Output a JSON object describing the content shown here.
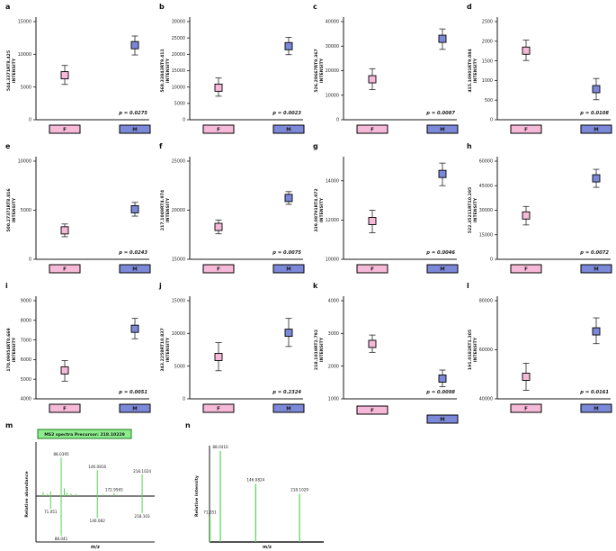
{
  "figure": {
    "background": "#ffffff",
    "group_labels": {
      "f": "F",
      "m": "M"
    }
  },
  "colors": {
    "f_fill": "#f6b9d8",
    "m_fill": "#7c89d9",
    "marker_stroke": "#000000",
    "error_bar": "#3d3d3d",
    "axis": "#1a1a1a",
    "peak_green": "#52d452",
    "header_fill": "#8ded8d",
    "header_stroke": "#1f7a1f"
  },
  "chart_data": [
    {
      "panel": "a",
      "type": "dotplot",
      "ylabel_line1": "544.3371RT8.425",
      "ylabel_line2": "INTENSITY",
      "ylim": [
        0,
        15000
      ],
      "yticks": [
        0,
        5000,
        10000,
        15000
      ],
      "points": [
        {
          "group": "F",
          "value": 6800,
          "lo": 5400,
          "hi": 8300
        },
        {
          "group": "M",
          "value": 11400,
          "lo": 9900,
          "hi": 12800
        }
      ],
      "p_text": "p = 0.0275"
    },
    {
      "panel": "b",
      "type": "dotplot",
      "ylabel_line1": "568.33843RT9.411",
      "ylabel_line2": "INTENSITY",
      "ylim": [
        0,
        30000
      ],
      "yticks": [
        0,
        5000,
        10000,
        15000,
        20000,
        25000,
        30000
      ],
      "points": [
        {
          "group": "F",
          "value": 9800,
          "lo": 7200,
          "hi": 12800
        },
        {
          "group": "M",
          "value": 22500,
          "lo": 19900,
          "hi": 25200
        }
      ],
      "p_text": "p = 0.0023"
    },
    {
      "panel": "c",
      "type": "dotplot",
      "ylabel_line1": "526.28667RT9.367",
      "ylabel_line2": "INTENSITY",
      "ylim": [
        0,
        40000
      ],
      "yticks": [
        0,
        10000,
        20000,
        30000,
        40000
      ],
      "points": [
        {
          "group": "F",
          "value": 16500,
          "lo": 12300,
          "hi": 20800
        },
        {
          "group": "M",
          "value": 33000,
          "lo": 28700,
          "hi": 37000
        }
      ],
      "p_text": "p = 0.0087"
    },
    {
      "panel": "d",
      "type": "dotplot",
      "ylabel_line1": "415.10901RT9.084",
      "ylabel_line2": "INTENSITY",
      "ylim": [
        0,
        2500
      ],
      "yticks": [
        0,
        500,
        1000,
        1500,
        2000,
        2500
      ],
      "points": [
        {
          "group": "F",
          "value": 1760,
          "lo": 1510,
          "hi": 2030
        },
        {
          "group": "M",
          "value": 780,
          "lo": 510,
          "hi": 1050
        }
      ],
      "p_text": "p = 0.0108"
    },
    {
      "panel": "e",
      "type": "dotplot",
      "ylabel_line1": "500.27371RT8.816",
      "ylabel_line2": "INTENSITY",
      "ylim": [
        0,
        10000
      ],
      "yticks": [
        0,
        5000,
        10000
      ],
      "points": [
        {
          "group": "F",
          "value": 2950,
          "lo": 2300,
          "hi": 3600
        },
        {
          "group": "M",
          "value": 5100,
          "lo": 4400,
          "hi": 5800
        }
      ],
      "p_text": "p = 0.0243"
    },
    {
      "panel": "f",
      "type": "dotplot",
      "ylabel_line1": "217.1049RT4.974",
      "ylabel_line2": "INTENSITY",
      "ylim": [
        15000,
        25000
      ],
      "yticks": [
        15000,
        20000,
        25000
      ],
      "points": [
        {
          "group": "F",
          "value": 18300,
          "lo": 17600,
          "hi": 19000
        },
        {
          "group": "M",
          "value": 21250,
          "lo": 20600,
          "hi": 21900
        }
      ],
      "p_text": "p = 0.0075"
    },
    {
      "panel": "g",
      "type": "dotplot",
      "ylabel_line1": "339.08791RT4.972",
      "ylabel_line2": "INTENSITY",
      "ylim": [
        10000,
        15000
      ],
      "yticks": [
        10000,
        12000,
        14000
      ],
      "points": [
        {
          "group": "F",
          "value": 11950,
          "lo": 11350,
          "hi": 12500
        },
        {
          "group": "M",
          "value": 14350,
          "lo": 13750,
          "hi": 14900
        }
      ],
      "p_text": "p = 0.0046"
    },
    {
      "panel": "h",
      "type": "dotplot",
      "ylabel_line1": "522.35211RT10.295",
      "ylabel_line2": "INTENSITY",
      "ylim": [
        0,
        60000
      ],
      "yticks": [
        0,
        15000,
        30000,
        45000,
        60000
      ],
      "points": [
        {
          "group": "F",
          "value": 26800,
          "lo": 21000,
          "hi": 32300
        },
        {
          "group": "M",
          "value": 49500,
          "lo": 44000,
          "hi": 55000
        }
      ],
      "p_text": "p = 0.0072"
    },
    {
      "panel": "i",
      "type": "dotplot",
      "ylabel_line1": "170.09054RT0.669",
      "ylabel_line2": "INTENSITY",
      "ylim": [
        4000,
        9000
      ],
      "yticks": [
        4000,
        5000,
        6000,
        7000,
        8000,
        9000
      ],
      "points": [
        {
          "group": "F",
          "value": 5450,
          "lo": 4900,
          "hi": 5950
        },
        {
          "group": "M",
          "value": 7570,
          "lo": 7060,
          "hi": 8100
        }
      ],
      "p_text": "p = 0.0051"
    },
    {
      "panel": "j",
      "type": "dotplot",
      "ylabel_line1": "343.2258RT10.837",
      "ylabel_line2": "INTENSITY",
      "ylim": [
        0,
        15000
      ],
      "yticks": [
        0,
        5000,
        10000,
        15000
      ],
      "points": [
        {
          "group": "F",
          "value": 6400,
          "lo": 4300,
          "hi": 8600
        },
        {
          "group": "M",
          "value": 10100,
          "lo": 8000,
          "hi": 12300
        }
      ],
      "p_text": "p = 0.2324"
    },
    {
      "panel": "k",
      "type": "dotplot",
      "ylabel_line1": "218.1019RT2.792",
      "ylabel_line2": "INTENSITY",
      "ylim": [
        1000,
        4000
      ],
      "yticks": [
        1000,
        2000,
        3000,
        4000
      ],
      "points": [
        {
          "group": "F",
          "value": 2680,
          "lo": 2420,
          "hi": 2950
        },
        {
          "group": "M",
          "value": 1620,
          "lo": 1370,
          "hi": 1880
        }
      ],
      "p_text": "p = 0.0098"
    },
    {
      "panel": "l",
      "type": "dotplot",
      "ylabel_line1": "191.0182RT1.305",
      "ylabel_line2": "INTENSITY",
      "ylim": [
        40000,
        80000
      ],
      "yticks": [
        40000,
        60000,
        80000
      ],
      "points": [
        {
          "group": "F",
          "value": 49000,
          "lo": 43500,
          "hi": 54500
        },
        {
          "group": "M",
          "value": 67500,
          "lo": 62500,
          "hi": 73000
        }
      ],
      "p_text": "p = 0.0161"
    },
    {
      "panel": "m",
      "type": "mirror_spectrum",
      "header": "MS2 spectra Precursor: 218.10229",
      "xlabel": "m/z",
      "ylabel": "Relative abundance",
      "peaks_top": [
        {
          "mz": 59,
          "rel": 0.1
        },
        {
          "mz": 66,
          "rel": 0.05
        },
        {
          "mz": 71.0,
          "rel": 0.12
        },
        {
          "mz": 88.0395,
          "rel": 1.0,
          "label": "88.0395"
        },
        {
          "mz": 93,
          "rel": 0.2
        },
        {
          "mz": 97,
          "rel": 0.09
        },
        {
          "mz": 104,
          "rel": 0.06
        },
        {
          "mz": 112,
          "rel": 0.05
        },
        {
          "mz": 146.0816,
          "rel": 0.67,
          "label": "146.0816"
        },
        {
          "mz": 155,
          "rel": 0.04
        },
        {
          "mz": 172.9565,
          "rel": 0.08,
          "label": "172.9565"
        },
        {
          "mz": 218.1024,
          "rel": 0.56,
          "label": "218.1024"
        }
      ],
      "peaks_bottom": [
        {
          "mz": 71.051,
          "rel": 0.32,
          "label": "71.051"
        },
        {
          "mz": 88.041,
          "rel": 1.0,
          "label": "88.041"
        },
        {
          "mz": 146.082,
          "rel": 0.55,
          "label": "146.082"
        },
        {
          "mz": 218.103,
          "rel": 0.43,
          "label": "218.103"
        }
      ]
    },
    {
      "panel": "n",
      "type": "spectrum",
      "xlabel": "m/z",
      "ylabel": "Relative Intensity",
      "peaks": [
        {
          "mz": 71.051,
          "rel": 0.28,
          "label": "71.051"
        },
        {
          "mz": 88.041,
          "rel": 1.0,
          "label": "88.0410"
        },
        {
          "mz": 146.0824,
          "rel": 0.64,
          "label": "146.0824"
        },
        {
          "mz": 218.1029,
          "rel": 0.53,
          "label": "218.1029"
        }
      ]
    }
  ]
}
